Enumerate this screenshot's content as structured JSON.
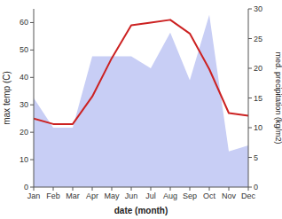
{
  "chart_data": {
    "type": "line",
    "xlabel": "date (month)",
    "ylabel": "max temp (C)",
    "y2label": "med. precipitation (kg/m2)",
    "categories": [
      "Jan",
      "Feb",
      "Mar",
      "Apr",
      "May",
      "Jun",
      "Jul",
      "Aug",
      "Sep",
      "Oct",
      "Nov",
      "Dec"
    ],
    "ylim": [
      0,
      65
    ],
    "yticks": [
      0,
      10,
      20,
      30,
      40,
      50,
      60
    ],
    "y2lim": [
      0,
      30
    ],
    "y2ticks": [
      0,
      5,
      10,
      15,
      20,
      25,
      30
    ],
    "grid": false,
    "series": [
      {
        "type": "area",
        "color": "#c8cef5",
        "axis": "y2",
        "values": [
          15,
          10,
          10,
          22,
          22,
          22,
          20,
          26,
          18,
          29,
          6,
          7
        ]
      },
      {
        "type": "line",
        "color": "#cc2222",
        "values": [
          25,
          23,
          23,
          33,
          47,
          59,
          60,
          61,
          56,
          43,
          27,
          26
        ]
      }
    ]
  }
}
